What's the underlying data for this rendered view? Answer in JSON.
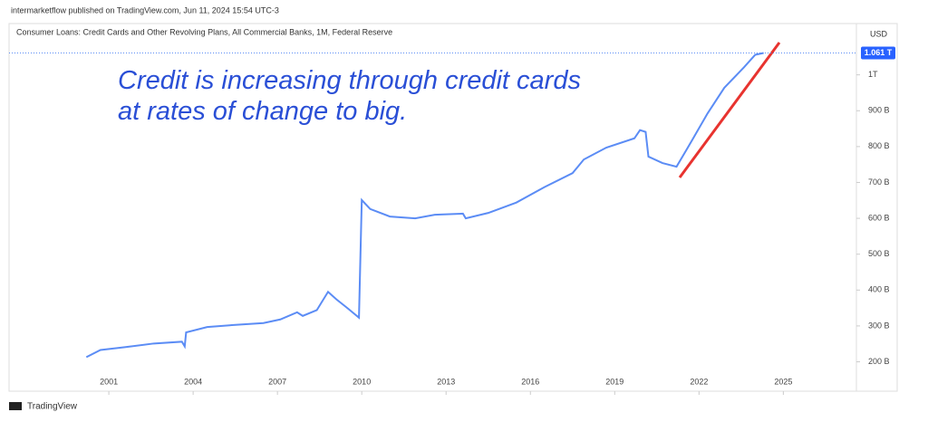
{
  "header": "intermarketflow published on TradingView.com, Jun 11, 2024 15:54 UTC-3",
  "footer": "TradingView",
  "chart_data": {
    "type": "line",
    "title": "Consumer Loans: Credit Cards and Other Revolving Plans, All Commercial Banks, 1M, Federal Reserve",
    "currency": "USD",
    "annotation": [
      "Credit is increasing through credit cards",
      "at rates of change to big."
    ],
    "last_value": {
      "value": 1061,
      "label": "1.061 T"
    },
    "x": [
      2000.2,
      2000.7,
      2001.6,
      2002.6,
      2003.6,
      2003.7,
      2003.75,
      2004.5,
      2005.5,
      2006.5,
      2007.1,
      2007.7,
      2007.9,
      2008.4,
      2008.8,
      2009.1,
      2009.5,
      2009.9,
      2010.0,
      2010.3,
      2011.0,
      2011.9,
      2012.6,
      2013.6,
      2013.7,
      2014.5,
      2015.5,
      2016.5,
      2017.5,
      2017.9,
      2018.7,
      2019.7,
      2019.9,
      2020.1,
      2020.2,
      2020.7,
      2021.2,
      2021.6,
      2022.3,
      2022.9,
      2023.6,
      2024.0,
      2024.3
    ],
    "series": [
      {
        "color": "#5b8cf5",
        "values": [
          213,
          233,
          241,
          251,
          256,
          243,
          282,
          297,
          303,
          308,
          318,
          338,
          328,
          344,
          395,
          374,
          349,
          323,
          651,
          626,
          605,
          600,
          610,
          613,
          600,
          615,
          644,
          687,
          726,
          764,
          797,
          823,
          846,
          841,
          772,
          754,
          744,
          797,
          892,
          964,
          1021,
          1056,
          1061
        ]
      }
    ],
    "xlim": [
      1997.45,
      2027.6
    ],
    "xticks": [
      2001,
      2004,
      2007,
      2010,
      2013,
      2016,
      2019,
      2022,
      2025
    ],
    "ylim": [
      118,
      1143
    ],
    "yticks": [
      {
        "value": 200,
        "label": "200 B"
      },
      {
        "value": 300,
        "label": "300 B"
      },
      {
        "value": 400,
        "label": "400 B"
      },
      {
        "value": 500,
        "label": "500 B"
      },
      {
        "value": 600,
        "label": "600 B"
      },
      {
        "value": 700,
        "label": "700 B"
      },
      {
        "value": 800,
        "label": "800 B"
      },
      {
        "value": 900,
        "label": "900 B"
      },
      {
        "value": 1000,
        "label": "1T"
      }
    ]
  }
}
